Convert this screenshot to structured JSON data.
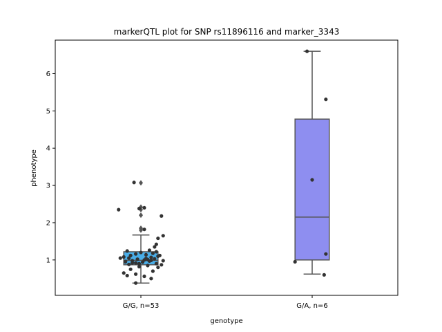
{
  "chart_data": {
    "type": "box",
    "title": "markerQTL plot for SNP rs11896116 and marker_3343",
    "xlabel": "genotype",
    "ylabel": "phenotype",
    "ylim": [
      0.05,
      6.9
    ],
    "yticks": [
      1,
      2,
      3,
      4,
      5,
      6
    ],
    "grid": false,
    "categories": [
      "G/G, n=53",
      "G/A, n=6"
    ],
    "boxes": [
      {
        "category": "G/G, n=53",
        "color": "#4aaee8",
        "q1": 0.87,
        "median": 0.99,
        "q3": 1.22,
        "whisker_low": 0.38,
        "whisker_high": 1.67,
        "outliers": [
          1.8,
          1.85,
          2.2,
          2.35,
          2.42,
          3.07
        ],
        "points": [
          {
            "x": -0.03,
            "y": 0.38
          },
          {
            "x": -0.08,
            "y": 0.58
          },
          {
            "x": -0.03,
            "y": 0.62
          },
          {
            "x": 0.06,
            "y": 0.5
          },
          {
            "x": 0.02,
            "y": 0.56
          },
          {
            "x": -0.1,
            "y": 0.65
          },
          {
            "x": 0.07,
            "y": 0.7
          },
          {
            "x": -0.06,
            "y": 0.75
          },
          {
            "x": 0.1,
            "y": 0.8
          },
          {
            "x": -0.01,
            "y": 0.82
          },
          {
            "x": 0.04,
            "y": 0.85
          },
          {
            "x": -0.07,
            "y": 0.88
          },
          {
            "x": 0.09,
            "y": 0.9
          },
          {
            "x": -0.03,
            "y": 0.92
          },
          {
            "x": 0.01,
            "y": 0.94
          },
          {
            "x": -0.09,
            "y": 0.96
          },
          {
            "x": 0.05,
            "y": 0.97
          },
          {
            "x": -0.05,
            "y": 0.98
          },
          {
            "x": 0.02,
            "y": 1.0
          },
          {
            "x": -0.02,
            "y": 1.02
          },
          {
            "x": 0.08,
            "y": 1.03
          },
          {
            "x": -0.07,
            "y": 1.05
          },
          {
            "x": 0.06,
            "y": 1.07
          },
          {
            "x": -0.1,
            "y": 1.08
          },
          {
            "x": 0.1,
            "y": 1.1
          },
          {
            "x": -0.06,
            "y": 1.12
          },
          {
            "x": 0.03,
            "y": 1.14
          },
          {
            "x": -0.03,
            "y": 1.16
          },
          {
            "x": 0.07,
            "y": 1.18
          },
          {
            "x": 0.0,
            "y": 1.2
          },
          {
            "x": 0.09,
            "y": 1.22
          },
          {
            "x": -0.08,
            "y": 1.24
          },
          {
            "x": 0.05,
            "y": 1.26
          },
          {
            "x": 0.08,
            "y": 1.35
          },
          {
            "x": 0.09,
            "y": 1.42
          },
          {
            "x": 0.1,
            "y": 1.58
          },
          {
            "x": 0.13,
            "y": 1.65
          },
          {
            "x": 0.12,
            "y": 2.18
          },
          {
            "x": -0.13,
            "y": 2.35
          },
          {
            "x": -0.01,
            "y": 2.38
          },
          {
            "x": 0.02,
            "y": 2.4
          },
          {
            "x": -0.04,
            "y": 3.08
          },
          {
            "x": 0.02,
            "y": 1.82
          },
          {
            "x": -0.05,
            "y": 0.92
          },
          {
            "x": 0.04,
            "y": 1.01
          },
          {
            "x": -0.12,
            "y": 1.05
          },
          {
            "x": 0.12,
            "y": 0.87
          },
          {
            "x": -0.09,
            "y": 0.95
          },
          {
            "x": 0.11,
            "y": 1.12
          },
          {
            "x": 0.03,
            "y": 1.04
          },
          {
            "x": -0.01,
            "y": 0.9
          },
          {
            "x": 0.06,
            "y": 0.99
          },
          {
            "x": 0.13,
            "y": 0.98
          }
        ]
      },
      {
        "category": "G/A, n=6",
        "color": "#8e8ef0",
        "q1": 1.0,
        "median": 2.15,
        "q3": 4.78,
        "whisker_low": 0.62,
        "whisker_high": 6.6,
        "outliers": [],
        "points": [
          {
            "x": -0.03,
            "y": 6.6
          },
          {
            "x": 0.08,
            "y": 5.31
          },
          {
            "x": 0.0,
            "y": 3.15
          },
          {
            "x": -0.1,
            "y": 0.95
          },
          {
            "x": 0.08,
            "y": 1.16
          },
          {
            "x": 0.07,
            "y": 0.6
          }
        ]
      }
    ]
  }
}
